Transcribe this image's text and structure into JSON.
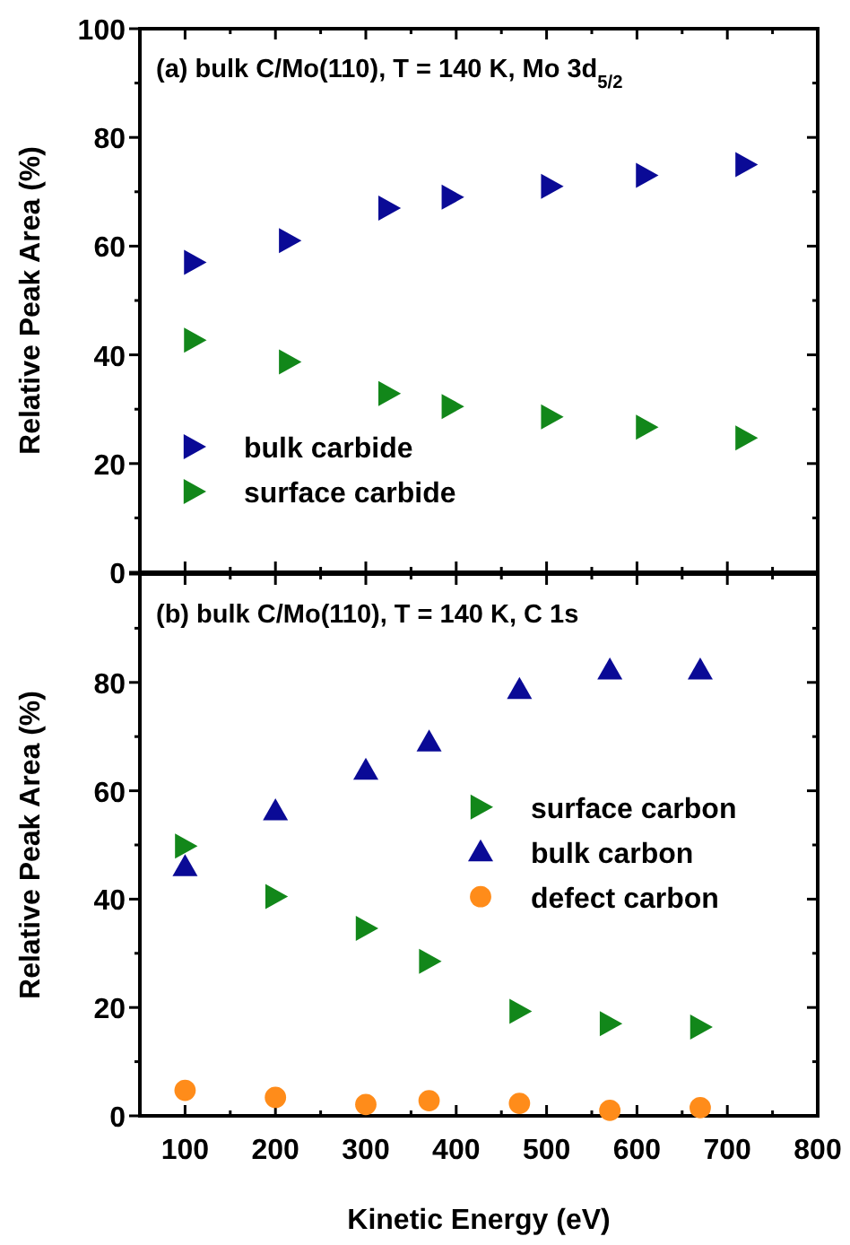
{
  "chart_data": [
    {
      "type": "scatter",
      "title": "(a) bulk C/Mo(110), T = 140 K, Mo 3d$_{5/2}$",
      "ylabel": "Relative Peak Area (%)",
      "x": [
        110,
        215,
        325,
        395,
        505,
        610,
        720
      ],
      "xlim": [
        50,
        800
      ],
      "xticks": [
        100,
        200,
        300,
        400,
        500,
        600,
        700,
        800
      ],
      "ylim": [
        0,
        100
      ],
      "yticks": [
        0,
        20,
        40,
        60,
        80,
        100
      ],
      "tick_labels": "y",
      "legend": "bottom left",
      "grid": false,
      "series": [
        {
          "name": "bulk carbide",
          "color": "#0a0a96",
          "marker": "triangle-right",
          "values": [
            57,
            61,
            67,
            69,
            71,
            73,
            75
          ]
        },
        {
          "name": "surface carbide",
          "color": "#12871a",
          "marker": "triangle-right",
          "values": [
            42.7,
            38.7,
            32.9,
            30.5,
            28.6,
            26.7,
            24.7
          ]
        }
      ]
    },
    {
      "type": "scatter",
      "title": "(b) bulk C/Mo(110), T = 140 K, C 1s",
      "ylabel": "Relative Peak Area (%)",
      "xlabel": "Kinetic Energy (eV)",
      "x": [
        100,
        200,
        300,
        370,
        470,
        570,
        670
      ],
      "xlim": [
        50,
        800
      ],
      "xticks": [
        100,
        200,
        300,
        400,
        500,
        600,
        700,
        800
      ],
      "ylim": [
        0,
        100
      ],
      "yticks": [
        0,
        20,
        40,
        60,
        80,
        {
          "value": 100,
          "label": null
        }
      ],
      "legend": "right",
      "grid": false,
      "series": [
        {
          "name": "surface carbon",
          "color": "#12871a",
          "marker": "triangle-right",
          "values": [
            49.8,
            40.5,
            34.6,
            28.5,
            19.3,
            17,
            16.4
          ]
        },
        {
          "name": "bulk carbon",
          "color": "#0a0a96",
          "marker": "triangle",
          "values": [
            46,
            56.3,
            63.8,
            69,
            78.7,
            82.3,
            82.3
          ]
        },
        {
          "name": "defect carbon",
          "color": "#ff8c1a",
          "marker": "circle",
          "values": [
            4.7,
            3.4,
            2.1,
            2.8,
            2.3,
            1,
            1.5
          ]
        }
      ]
    }
  ]
}
